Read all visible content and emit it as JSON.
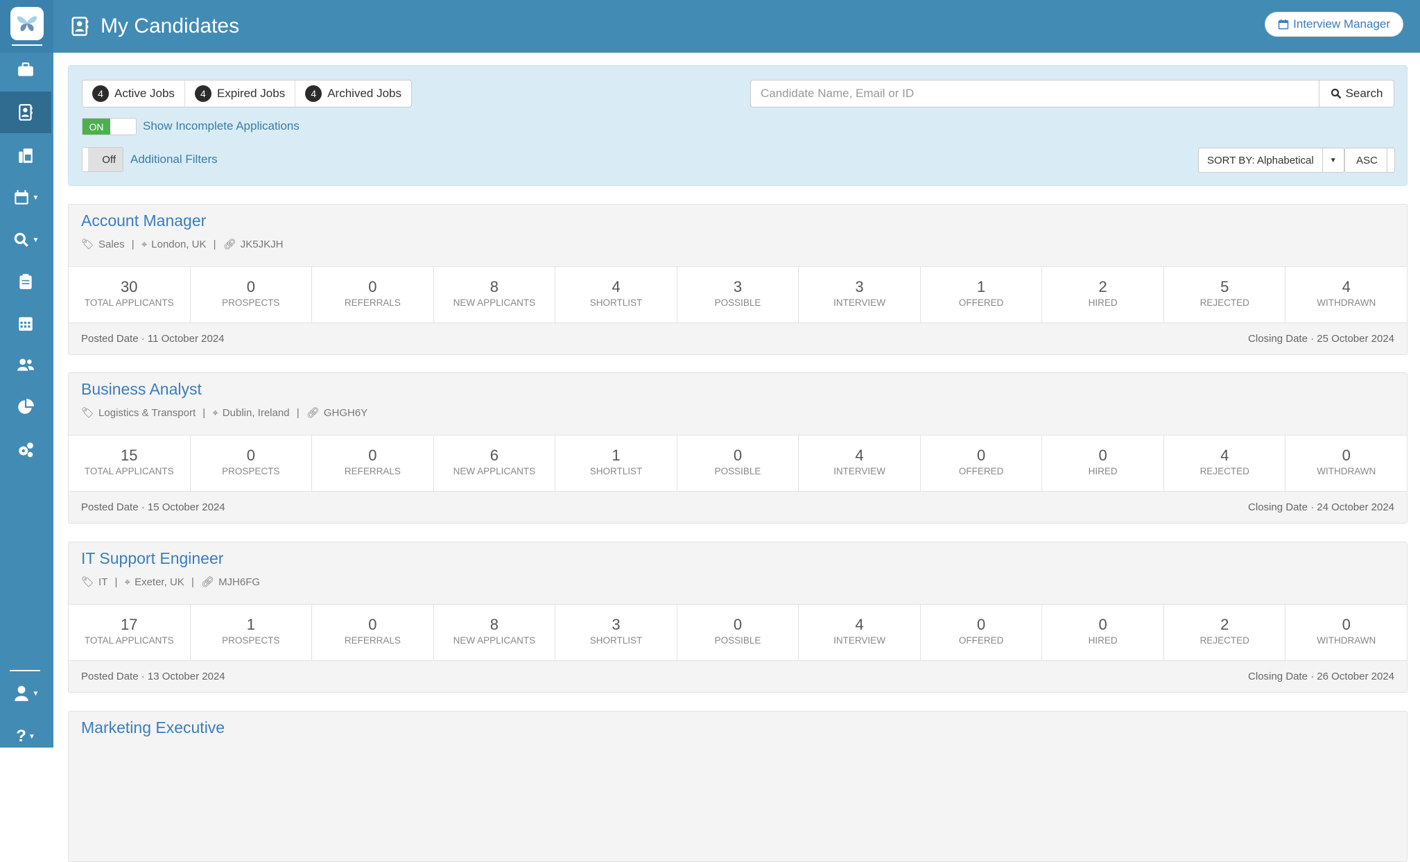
{
  "header": {
    "title": "My Candidates",
    "interview_manager": "Interview Manager"
  },
  "filters": {
    "tabs": [
      {
        "count": "4",
        "label": "Active Jobs"
      },
      {
        "count": "4",
        "label": "Expired Jobs"
      },
      {
        "count": "4",
        "label": "Archived Jobs"
      }
    ],
    "search_placeholder": "Candidate Name, Email or ID",
    "search_label": "Search",
    "incomplete_toggle": "ON",
    "incomplete_label": "Show Incomplete Applications",
    "additional_toggle": "Off",
    "additional_label": "Additional Filters",
    "sort_label": "SORT BY: Alphabetical",
    "order": "ASC"
  },
  "stat_labels": [
    "TOTAL APPLICANTS",
    "PROSPECTS",
    "REFERRALS",
    "NEW APPLICANTS",
    "SHORTLIST",
    "POSSIBLE",
    "INTERVIEW",
    "OFFERED",
    "HIRED",
    "REJECTED",
    "WITHDRAWN"
  ],
  "jobs": [
    {
      "title": "Account Manager",
      "category": "Sales",
      "location": "London, UK",
      "ref": "JK5JKJH",
      "stats": [
        "30",
        "0",
        "0",
        "8",
        "4",
        "3",
        "3",
        "1",
        "2",
        "5",
        "4"
      ],
      "posted": "Posted Date · 11 October 2024",
      "closing": "Closing Date · 25 October 2024"
    },
    {
      "title": "Business Analyst",
      "category": "Logistics & Transport",
      "location": "Dublin, Ireland",
      "ref": "GHGH6Y",
      "stats": [
        "15",
        "0",
        "0",
        "6",
        "1",
        "0",
        "4",
        "0",
        "0",
        "4",
        "0"
      ],
      "posted": "Posted Date · 15 October 2024",
      "closing": "Closing Date · 24 October 2024"
    },
    {
      "title": "IT Support Engineer",
      "category": "IT",
      "location": "Exeter, UK",
      "ref": "MJH6FG",
      "stats": [
        "17",
        "1",
        "0",
        "8",
        "3",
        "0",
        "4",
        "0",
        "0",
        "2",
        "0"
      ],
      "posted": "Posted Date · 13 October 2024",
      "closing": "Closing Date · 26 October 2024"
    },
    {
      "title": "Marketing Executive"
    }
  ],
  "colors": {
    "primary": "#428bb5",
    "link": "#3a7dc0",
    "toggle_on": "#4cb050",
    "filter_bg": "#d9ecf5"
  }
}
